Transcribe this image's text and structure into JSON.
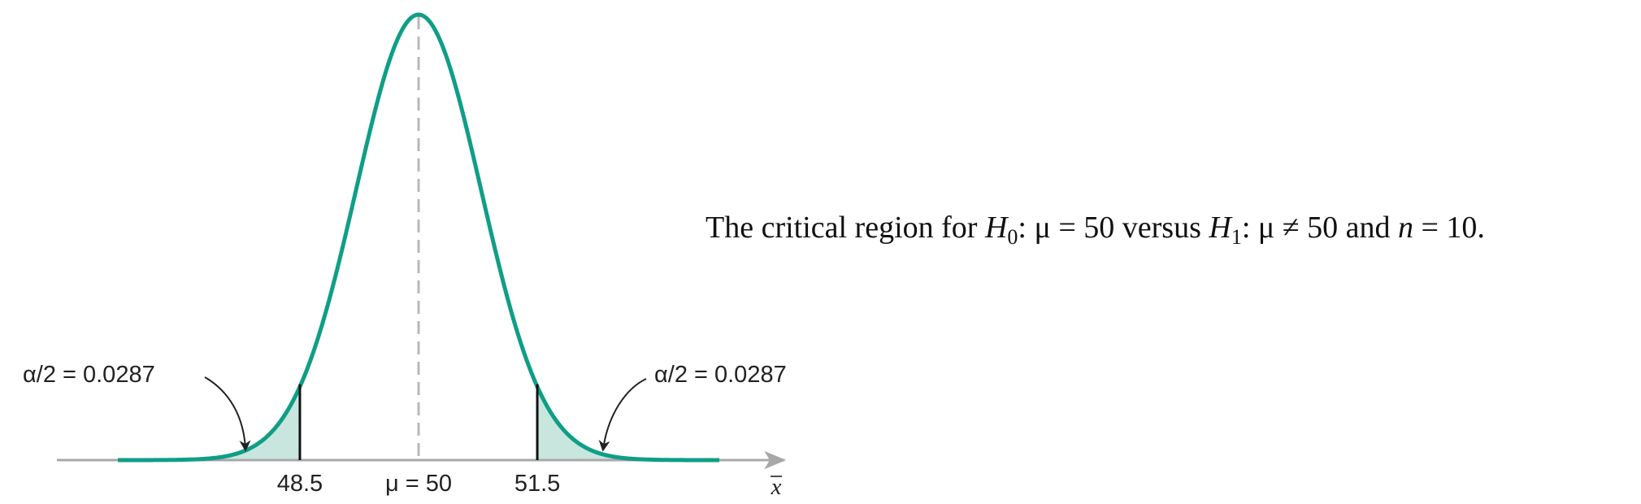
{
  "chart_data": {
    "type": "area",
    "distribution": "normal",
    "mean": 50,
    "std_error": 0.79,
    "xlim": [
      46.2,
      53.8
    ],
    "critical_values": [
      48.5,
      51.5
    ],
    "mean_label": "μ = 50",
    "xlabel": "x",
    "tick_labels": [
      "48.5",
      "51.5"
    ],
    "annotations": [
      {
        "text": "α/2 = 0.0287",
        "side": "left"
      },
      {
        "text": "α/2 = 0.0287",
        "side": "right"
      }
    ],
    "caption": {
      "p1": "The critical region for ",
      "h0": "H",
      "h0_sub": "0",
      "p2": ": μ = 50 versus ",
      "h1": "H",
      "h1_sub": "1",
      "p3": ": μ ≠ 50 and ",
      "n": "n",
      "p4": " = 10."
    },
    "colors": {
      "curve": "#0f9e86",
      "fill": "#c9e6de",
      "axis": "#a8a8a8",
      "mean_line": "#b8b8b8",
      "critical_line": "#111111",
      "arrow": "#222222"
    }
  }
}
